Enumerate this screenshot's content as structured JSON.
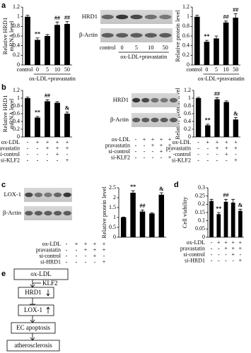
{
  "panel_labels": [
    "a",
    "b",
    "c",
    "d",
    "e"
  ],
  "chart_data": [
    {
      "type": "bar",
      "ylabel": [
        "Relative HRD1",
        "mRNA level"
      ],
      "categories": [
        "control",
        "0",
        "5",
        "10",
        "50"
      ],
      "xlabel": "ox-LDL+pravastatin",
      "values": [
        1.0,
        0.52,
        0.6,
        0.83,
        0.85
      ],
      "errors": [
        0.03,
        0.04,
        0.03,
        0.06,
        0.05
      ],
      "annotations": [
        null,
        "**",
        null,
        "##",
        "##"
      ],
      "color": "#000000",
      "ylim": [
        0,
        1.2
      ],
      "yticks": [
        0,
        0.2,
        0.4,
        0.6,
        0.8,
        1,
        1.2
      ]
    },
    {
      "type": "bar",
      "ylabel": [
        "Relative protein level"
      ],
      "categories": [
        "control",
        "0",
        "5",
        "10",
        "50"
      ],
      "xlabel": "ox-LDL+pravastatin",
      "values": [
        1.0,
        0.48,
        0.55,
        0.88,
        0.98
      ],
      "errors": [
        0.03,
        0.03,
        0.05,
        0.03,
        0.08
      ],
      "annotations": [
        null,
        "**",
        null,
        "##",
        "##"
      ],
      "color": "#000000",
      "ylim": [
        0,
        1.2
      ],
      "yticks": [
        0,
        0.2,
        0.4,
        0.6,
        0.8,
        1,
        1.2
      ]
    },
    {
      "type": "bar",
      "ylabel": [
        "Relative HRD1",
        "mRNA level"
      ],
      "values": [
        1.0,
        0.5,
        0.92,
        0.88,
        0.6
      ],
      "errors": [
        0.03,
        0.03,
        0.04,
        0.03,
        0.04
      ],
      "annotations": [
        null,
        "**",
        "##",
        null,
        "&"
      ],
      "conditions": [
        {
          "name": "ox-LDL",
          "signs": [
            "-",
            "+",
            "+",
            "+",
            "+"
          ]
        },
        {
          "name": "pravastatin",
          "signs": [
            "-",
            "-",
            "+",
            "+",
            "+"
          ]
        },
        {
          "name": "si-control",
          "signs": [
            "-",
            "-",
            "-",
            "+",
            "-"
          ]
        },
        {
          "name": "si-KLF2",
          "signs": [
            "-",
            "-",
            "-",
            "-",
            "+"
          ]
        }
      ],
      "color": "#000000",
      "ylim": [
        0,
        1.2
      ],
      "yticks": [
        0,
        0.2,
        0.4,
        0.6,
        0.8,
        1,
        1.2
      ]
    },
    {
      "type": "bar",
      "ylabel": [
        "Relative protein level"
      ],
      "values": [
        1.0,
        0.3,
        0.97,
        0.9,
        0.45
      ],
      "errors": [
        0.02,
        0.03,
        0.04,
        0.03,
        0.05
      ],
      "annotations": [
        null,
        "**",
        "##",
        null,
        "&"
      ],
      "conditions": [
        {
          "name": "ox-LDL",
          "signs": [
            "-",
            "+",
            "+",
            "+",
            "+"
          ]
        },
        {
          "name": "pravastatin",
          "signs": [
            "-",
            "-",
            "+",
            "+",
            "+"
          ]
        },
        {
          "name": "-control",
          "signs": [
            "-",
            "-",
            "-",
            "+",
            "-"
          ]
        },
        {
          "name": "si-KLF2",
          "signs": [
            "-",
            "-",
            "-",
            "-",
            "+"
          ]
        }
      ],
      "color": "#000000",
      "ylim": [
        0,
        1.2
      ],
      "yticks": [
        0,
        0.2,
        0.4,
        0.6,
        0.8,
        1,
        1.2
      ]
    },
    {
      "type": "bar",
      "ylabel": [
        "Relative protein level"
      ],
      "values": [
        1.0,
        2.25,
        1.3,
        1.2,
        2.15
      ],
      "errors": [
        0.02,
        0.1,
        0.08,
        0.04,
        0.1
      ],
      "annotations": [
        null,
        "**",
        "##",
        null,
        "&"
      ],
      "color": "#000000",
      "ylim": [
        0,
        2.5
      ],
      "yticks": [
        0,
        0.5,
        1,
        1.5,
        2,
        2.5
      ]
    },
    {
      "type": "bar",
      "ylabel": [
        "Cell viability"
      ],
      "values": [
        0.22,
        0.14,
        0.215,
        0.21,
        0.16
      ],
      "errors": [
        0.01,
        0.01,
        0.015,
        0.02,
        0.01
      ],
      "annotations": [
        null,
        "**",
        "##",
        null,
        "&"
      ],
      "conditions": [
        {
          "name": "ox-LDL",
          "signs": [
            "-",
            "+",
            "+",
            "+",
            "+"
          ]
        },
        {
          "name": "pravastatin",
          "signs": [
            "-",
            "-",
            "+",
            "+",
            "+"
          ]
        },
        {
          "name": "si-control",
          "signs": [
            "-",
            "-",
            "-",
            "+",
            "-"
          ]
        },
        {
          "name": "si-HRD1",
          "signs": [
            "-",
            "-",
            "-",
            "-",
            "+"
          ]
        }
      ],
      "color": "#000000",
      "ylim": [
        0,
        0.3
      ],
      "yticks": [
        0,
        0.05,
        0.1,
        0.15,
        0.2,
        0.25,
        0.3
      ]
    }
  ],
  "blots": [
    {
      "rows": [
        "HRD1",
        "β-Actin"
      ],
      "categories": [
        "control",
        "0",
        "5",
        "10",
        "50"
      ],
      "xlabel": "ox-LDL+pravastatin"
    },
    {
      "rows": [
        "HRD1",
        "β-Actin"
      ],
      "conditions": [
        {
          "name": "ox-LDL",
          "signs": [
            "-",
            "+",
            "+",
            "+",
            "+"
          ]
        },
        {
          "name": "pravastatin",
          "signs": [
            "-",
            "-",
            "+",
            "+",
            "+"
          ]
        },
        {
          "name": "si-control",
          "signs": [
            "-",
            "-",
            "-",
            "+",
            "-"
          ]
        },
        {
          "name": "si-KLF2",
          "signs": [
            "-",
            "-",
            "-",
            "-",
            "+"
          ]
        }
      ]
    },
    {
      "rows": [
        "LOX-1",
        "β-Actin"
      ],
      "conditions": [
        {
          "name": "ox-LDL",
          "signs": [
            "-",
            "+",
            "+",
            "+",
            "+"
          ]
        },
        {
          "name": "pravastatin",
          "signs": [
            "-",
            "-",
            "+",
            "+",
            "+"
          ]
        },
        {
          "name": "si-control",
          "signs": [
            "-",
            "-",
            "-",
            "+",
            "-"
          ]
        },
        {
          "name": "si-HRD1",
          "signs": [
            "-",
            "-",
            "-",
            "-",
            "+"
          ]
        }
      ]
    }
  ],
  "diagram": {
    "nodes": [
      "ox-LDL",
      "HRD1",
      "LOX-1",
      "EC apoptosis",
      "atherosclerosis"
    ],
    "side": "KLF2"
  }
}
